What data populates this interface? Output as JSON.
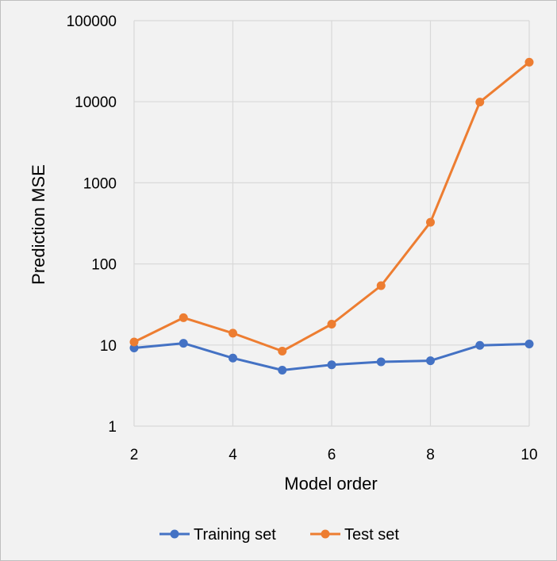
{
  "chart_data": {
    "type": "line",
    "title": "",
    "xlabel": "Model order",
    "ylabel": "Prediction MSE",
    "xlim": [
      2,
      10
    ],
    "ylim": [
      1,
      100000
    ],
    "y_scale": "log",
    "grid": true,
    "legend_position": "bottom",
    "x_ticks": [
      "2",
      "4",
      "6",
      "8",
      "10"
    ],
    "y_ticks": [
      "1",
      "10",
      "100",
      "1000",
      "10000",
      "100000"
    ],
    "x": [
      2,
      3,
      4,
      5,
      6,
      7,
      8,
      9,
      10
    ],
    "series": [
      {
        "name": "Training set",
        "color": "#4472c4",
        "values": [
          9.2,
          10.5,
          6.9,
          4.9,
          5.7,
          6.2,
          6.4,
          9.9,
          10.3
        ]
      },
      {
        "name": "Test set",
        "color": "#ed7d31",
        "values": [
          10.9,
          21.7,
          14.0,
          8.4,
          18.1,
          53.9,
          326,
          9900,
          30700
        ]
      }
    ]
  }
}
